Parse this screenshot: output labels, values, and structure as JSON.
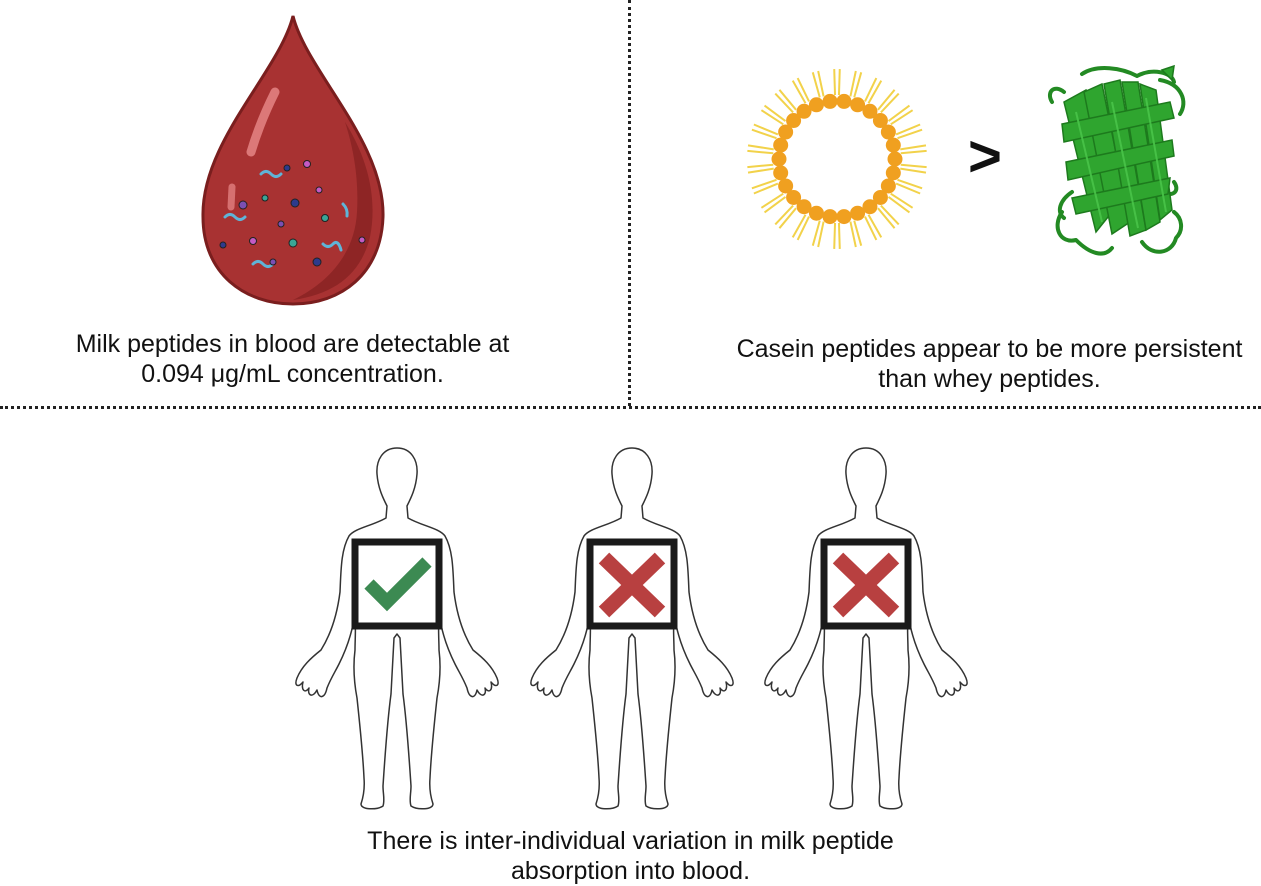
{
  "panels": {
    "blood": {
      "caption_line1": "Milk peptides in blood are detectable at",
      "caption_line2": "0.094 μg/mL concentration."
    },
    "comparison": {
      "left_item": "casein-micelle",
      "operator": ">",
      "right_item": "whey-protein",
      "caption_line1": "Casein peptides appear to be more persistent",
      "caption_line2": "than whey peptides."
    },
    "variation": {
      "individuals": [
        {
          "result": "check"
        },
        {
          "result": "cross"
        },
        {
          "result": "cross"
        }
      ],
      "caption_line1": "There is inter-individual variation in milk peptide",
      "caption_line2": "absorption into blood."
    }
  },
  "colors": {
    "blood": "#a83232",
    "blood_dark": "#8a2323",
    "micelle_core": "#f0a020",
    "micelle_tails": "#f2d24a",
    "protein": "#2fa52f",
    "check": "#3c8a52",
    "cross": "#b84040",
    "box": "#1a1a1a"
  }
}
